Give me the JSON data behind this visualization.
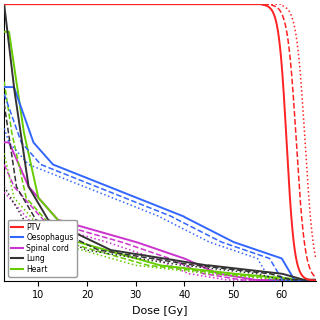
{
  "xlabel": "Dose [Gy]",
  "xlim": [
    3,
    67
  ],
  "ylim": [
    0,
    100
  ],
  "xticks": [
    10,
    20,
    30,
    40,
    50,
    60
  ],
  "colors": {
    "PTV": "#FF2222",
    "Oesophagus": "#3366FF",
    "Spinal cord": "#CC33CC",
    "Lung": "#333333",
    "Heart": "#66CC00"
  },
  "background": "#FFFFFF"
}
